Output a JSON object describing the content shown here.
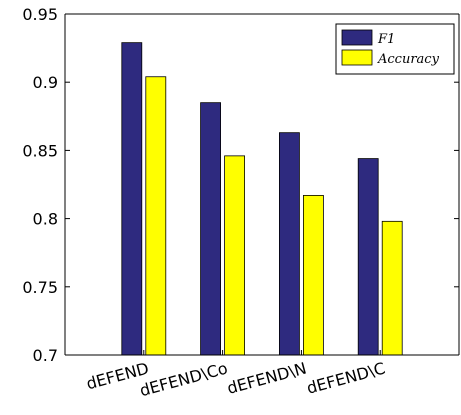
{
  "chart_data": {
    "type": "bar",
    "categories": [
      "dEFEND",
      "dEFEND\\Co",
      "dEFEND\\N",
      "dEFEND\\C"
    ],
    "series": [
      {
        "name": "F1",
        "values": [
          0.929,
          0.885,
          0.863,
          0.844
        ],
        "color": "#2e2a7f"
      },
      {
        "name": "Accuracy",
        "values": [
          0.904,
          0.846,
          0.817,
          0.798
        ],
        "color": "#ffff00"
      }
    ],
    "ylim": [
      0.7,
      0.95
    ],
    "yticks": [
      "0.7",
      "0.75",
      "0.8",
      "0.85",
      "0.9",
      "0.95"
    ],
    "title": "",
    "xlabel": "",
    "ylabel": "",
    "legend": "top-right",
    "grid": false
  }
}
